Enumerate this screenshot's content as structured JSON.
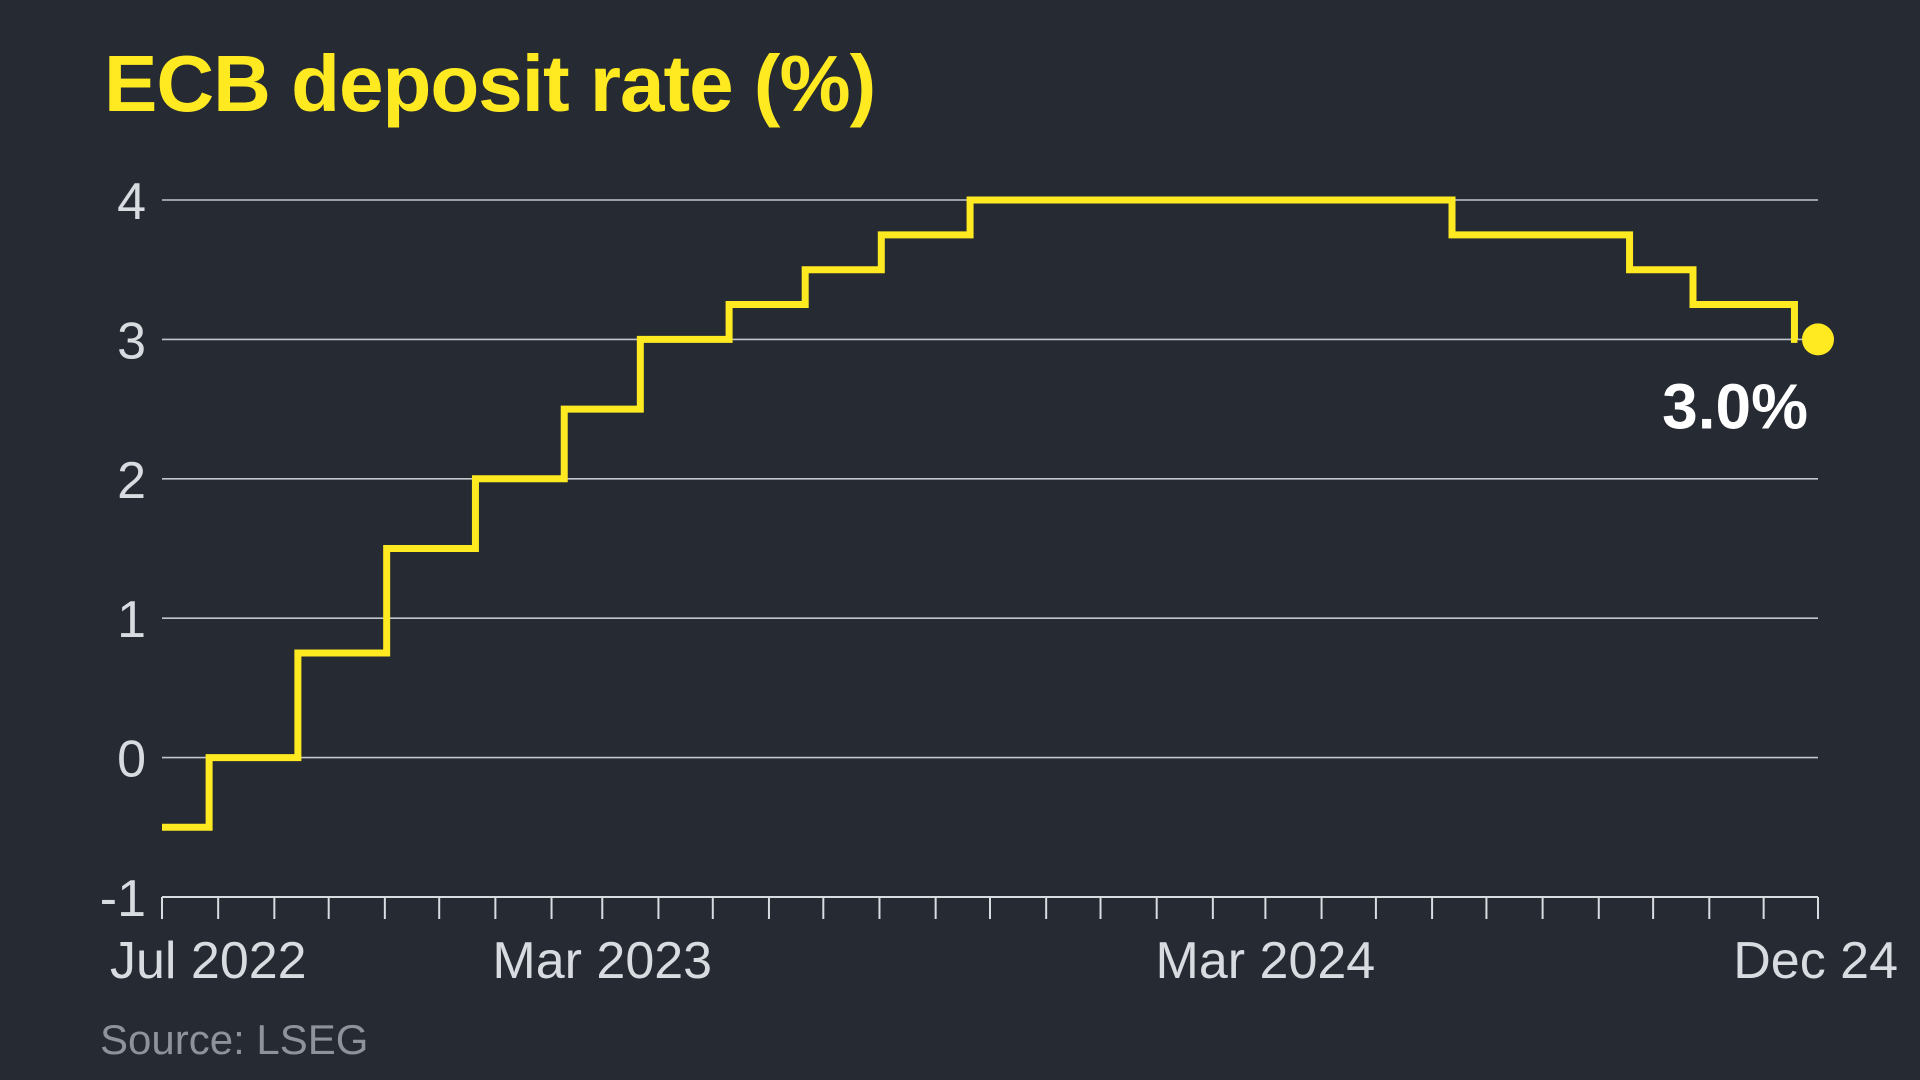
{
  "chart_data": {
    "type": "line",
    "title": "ECB deposit rate (%)",
    "subtitle": "",
    "xlabel": "",
    "ylabel": "",
    "source": "Source: LSEG",
    "line_shape": "step",
    "ylim": [
      -1,
      4
    ],
    "yticks": [
      -1,
      0,
      1,
      2,
      3,
      4
    ],
    "xlim": [
      "2022-07-01",
      "2024-12-31"
    ],
    "x_tick_labels": [
      {
        "date": "2022-07-01",
        "label": "Jul 2022"
      },
      {
        "date": "2023-03-01",
        "label": "Mar 2023"
      },
      {
        "date": "2024-03-01",
        "label": "Mar 2024"
      },
      {
        "date": "2024-12-31",
        "label": "Dec 24"
      }
    ],
    "grid": true,
    "series": [
      {
        "name": "",
        "color": "#ffea22",
        "points": [
          {
            "date": "2022-07-01",
            "value": -0.5
          },
          {
            "date": "2022-07-27",
            "value": 0.0
          },
          {
            "date": "2022-09-14",
            "value": 0.75
          },
          {
            "date": "2022-11-02",
            "value": 1.5
          },
          {
            "date": "2022-12-21",
            "value": 2.0
          },
          {
            "date": "2023-02-08",
            "value": 2.5
          },
          {
            "date": "2023-03-22",
            "value": 3.0
          },
          {
            "date": "2023-05-10",
            "value": 3.25
          },
          {
            "date": "2023-06-21",
            "value": 3.5
          },
          {
            "date": "2023-08-02",
            "value": 3.75
          },
          {
            "date": "2023-09-20",
            "value": 4.0
          },
          {
            "date": "2024-06-12",
            "value": 3.75
          },
          {
            "date": "2024-09-18",
            "value": 3.5
          },
          {
            "date": "2024-10-23",
            "value": 3.25
          },
          {
            "date": "2024-12-18",
            "value": 3.0
          }
        ],
        "end_label": "3.0%"
      }
    ]
  }
}
